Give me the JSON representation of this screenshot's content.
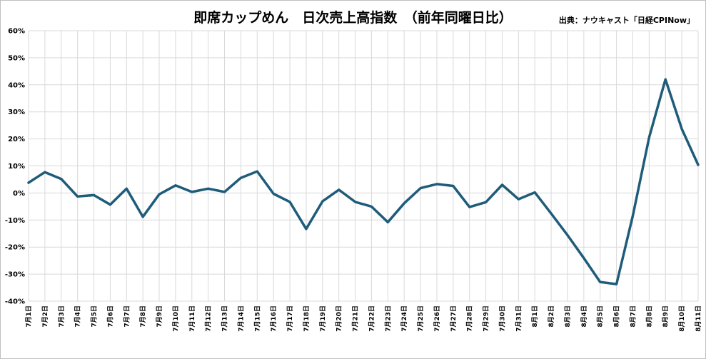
{
  "chart_data": {
    "type": "line",
    "title": "即席カップめん　日次売上高指数　（前年同曜日比）",
    "source": "出典：ナウキャスト「日経CPINow」",
    "ylim": [
      -40,
      60
    ],
    "y_ticks": [
      "60%",
      "50%",
      "40%",
      "30%",
      "20%",
      "10%",
      "0%",
      "-10%",
      "-20%",
      "-30%",
      "-40%"
    ],
    "y_tick_values": [
      60,
      50,
      40,
      30,
      20,
      10,
      0,
      -10,
      -20,
      -30,
      -40
    ],
    "grid": true,
    "line_color": "#1f5c7a",
    "categories": [
      "7月1日",
      "7月2日",
      "7月3日",
      "7月4日",
      "7月5日",
      "7月6日",
      "7月7日",
      "7月8日",
      "7月9日",
      "7月10日",
      "7月11日",
      "7月12日",
      "7月13日",
      "7月14日",
      "7月15日",
      "7月16日",
      "7月17日",
      "7月18日",
      "7月19日",
      "7月20日",
      "7月21日",
      "7月22日",
      "7月23日",
      "7月24日",
      "7月25日",
      "7月26日",
      "7月27日",
      "7月28日",
      "7月29日",
      "7月30日",
      "7月31日",
      "8月1日",
      "8月2日",
      "8月3日",
      "8月4日",
      "8月5日",
      "8月6日",
      "8月7日",
      "8月8日",
      "8月9日",
      "8月10日",
      "8月11日"
    ],
    "values": [
      3.8,
      7.7,
      5.2,
      -1.3,
      -0.8,
      -4.3,
      1.6,
      -8.8,
      -0.5,
      2.8,
      0.4,
      1.6,
      0.4,
      5.6,
      8.0,
      -0.3,
      -3.3,
      -13.3,
      -3.1,
      1.2,
      -3.3,
      -5.0,
      -10.8,
      -3.8,
      1.8,
      3.3,
      2.6,
      -5.2,
      -3.4,
      3.0,
      -2.3,
      0.2,
      -7.6,
      -15.6,
      -24.1,
      -32.9,
      -33.7,
      -8.4,
      20.6,
      42.0,
      23.7,
      10.4
    ]
  }
}
